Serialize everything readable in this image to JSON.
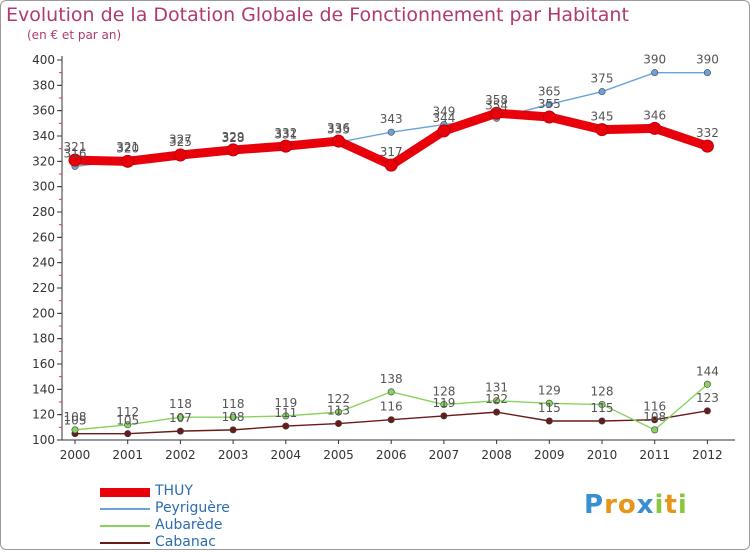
{
  "header": {
    "title": "Evolution de la Dotation Globale de Fonctionnement par Habitant",
    "subtitle": "(en € et par an)"
  },
  "chart_data": {
    "type": "line",
    "title": "Evolution de la Dotation Globale de Fonctionnement par Habitant",
    "subtitle": "(en € et par an)",
    "xlabel": "",
    "ylabel": "",
    "categories": [
      "2000",
      "2001",
      "2002",
      "2003",
      "2004",
      "2005",
      "2006",
      "2007",
      "2008",
      "2009",
      "2010",
      "2011",
      "2012"
    ],
    "ylim": [
      100,
      400
    ],
    "yticks": [
      100,
      120,
      140,
      160,
      180,
      200,
      220,
      240,
      260,
      280,
      300,
      320,
      340,
      360,
      380,
      400
    ],
    "grid": false,
    "legend": "bottom-left",
    "series": [
      {
        "name": "THUY",
        "color": "#e8000b",
        "values": [
          321,
          320,
          325,
          329,
          332,
          336,
          317,
          344,
          358,
          355,
          345,
          346,
          332
        ]
      },
      {
        "name": "Peyriguère",
        "color": "#6aa3d9",
        "values": [
          316,
          321,
          327,
          328,
          331,
          335,
          343,
          349,
          354,
          365,
          375,
          390,
          390
        ]
      },
      {
        "name": "Aubarède",
        "color": "#88d360",
        "values": [
          108,
          112,
          118,
          118,
          119,
          122,
          138,
          128,
          131,
          129,
          128,
          108,
          144
        ]
      },
      {
        "name": "Cabanac",
        "color": "#6b1a1a",
        "values": [
          105,
          105,
          107,
          108,
          111,
          113,
          116,
          119,
          122,
          115,
          115,
          116,
          123
        ]
      }
    ]
  },
  "logo": {
    "letters": [
      {
        "char": "P",
        "color": "#3a8fd1"
      },
      {
        "char": "r",
        "color": "#e8951c"
      },
      {
        "char": "o",
        "color": "#e8951c"
      },
      {
        "char": "x",
        "color": "#3a8fd1"
      },
      {
        "char": "i",
        "color": "#8cc63f"
      },
      {
        "char": "t",
        "color": "#e8951c"
      },
      {
        "char": "i",
        "color": "#8cc63f"
      }
    ]
  }
}
